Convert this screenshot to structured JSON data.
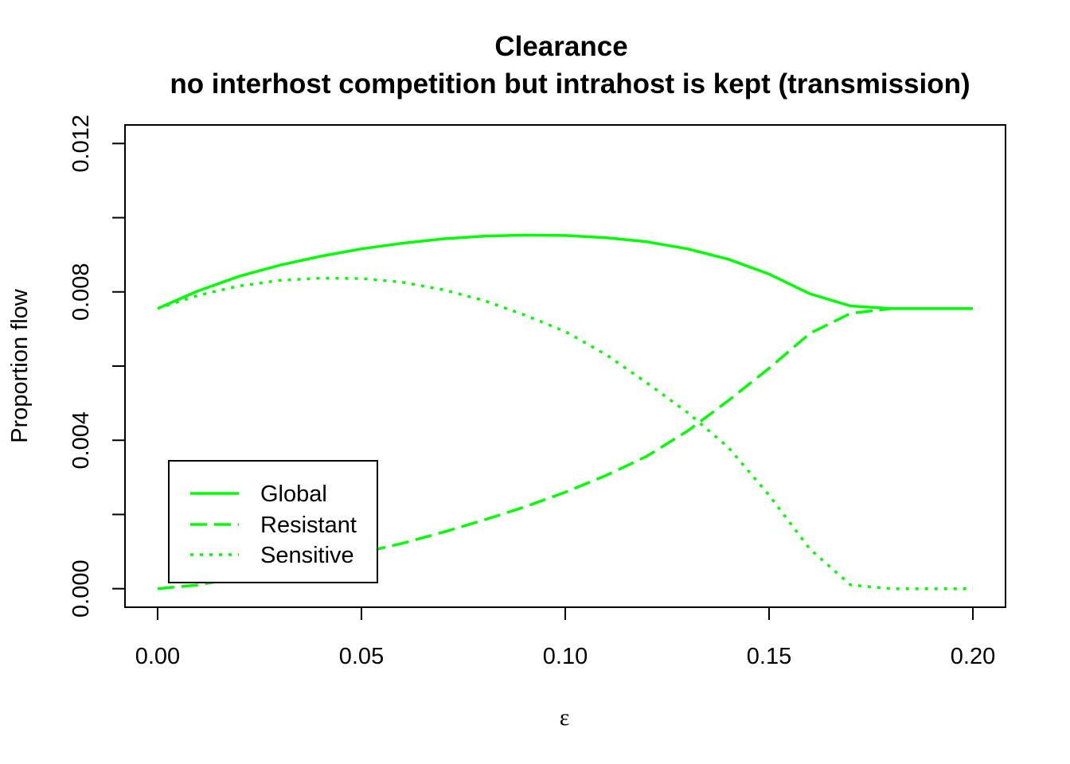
{
  "chart_data": {
    "type": "line",
    "title": "Clearance",
    "subtitle": "no interhost competition but intrahost is kept (transmission)",
    "xlabel": "ε",
    "ylabel": "Proportion flow",
    "xlim": [
      -0.008,
      0.208
    ],
    "ylim": [
      -0.0005,
      0.0125
    ],
    "x_ticks": [
      0.0,
      0.05,
      0.1,
      0.15,
      0.2
    ],
    "x_tick_labels": [
      "0.00",
      "0.05",
      "0.10",
      "0.15",
      "0.20"
    ],
    "y_ticks": [
      0.0,
      0.002,
      0.004,
      0.006,
      0.008,
      0.01,
      0.012
    ],
    "y_tick_labels": [
      "0.000",
      "",
      "0.004",
      "",
      "0.008",
      "",
      "0.012"
    ],
    "grid": false,
    "legend_position": "bottom-left",
    "color": "#00ff00",
    "x": [
      0.0,
      0.01,
      0.02,
      0.03,
      0.04,
      0.05,
      0.06,
      0.07,
      0.08,
      0.09,
      0.1,
      0.11,
      0.12,
      0.13,
      0.14,
      0.15,
      0.16,
      0.17,
      0.18,
      0.19,
      0.2
    ],
    "series": [
      {
        "name": "Global",
        "dash": "solid",
        "values": [
          0.00755,
          0.00803,
          0.00842,
          0.00872,
          0.00896,
          0.00916,
          0.00931,
          0.00943,
          0.0095,
          0.00953,
          0.00952,
          0.00946,
          0.00935,
          0.00916,
          0.00888,
          0.00848,
          0.00795,
          0.00762,
          0.00755,
          0.00755,
          0.00755
        ]
      },
      {
        "name": "Resistant",
        "dash": "dashed",
        "values": [
          0.0,
          0.0001,
          0.0003,
          0.00052,
          0.00074,
          0.00097,
          0.00122,
          0.00152,
          0.00185,
          0.0022,
          0.0026,
          0.00305,
          0.00357,
          0.00425,
          0.00507,
          0.00594,
          0.00688,
          0.00742,
          0.00755,
          0.00755,
          0.00755
        ]
      },
      {
        "name": "Sensitive",
        "dash": "dotted",
        "values": [
          0.00755,
          0.00791,
          0.00816,
          0.00831,
          0.00837,
          0.00836,
          0.00826,
          0.00806,
          0.00777,
          0.00738,
          0.00693,
          0.00631,
          0.00555,
          0.00475,
          0.00381,
          0.00252,
          0.00107,
          0.0001,
          0.0,
          0.0,
          0.0
        ]
      }
    ]
  }
}
